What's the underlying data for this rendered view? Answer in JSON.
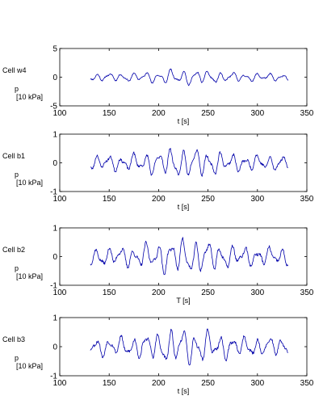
{
  "chart_data": [
    {
      "type": "line",
      "cell_label": "Cell w4",
      "ylabel_line1": "p",
      "ylabel_line2": "[10 kPa]",
      "xlabel": "t  [s]",
      "xlim": [
        100,
        350
      ],
      "ylim": [
        -5,
        5
      ],
      "xticks": [
        100,
        150,
        200,
        250,
        300,
        350
      ],
      "yticks": [
        -5,
        0,
        5
      ],
      "line_color": "#0000aa",
      "t_range": [
        131,
        331
      ],
      "amplitude": 1.3,
      "seed": 11
    },
    {
      "type": "line",
      "cell_label": "Cell b1",
      "ylabel_line1": "p",
      "ylabel_line2": "[10 kPa]",
      "xlabel": "t  [s]",
      "xlim": [
        100,
        350
      ],
      "ylim": [
        -1,
        1
      ],
      "xticks": [
        100,
        150,
        200,
        250,
        300,
        350
      ],
      "yticks": [
        -1,
        0,
        1
      ],
      "line_color": "#0000aa",
      "t_range": [
        131,
        331
      ],
      "amplitude": 0.52,
      "seed": 23
    },
    {
      "type": "line",
      "cell_label": "Cell b2",
      "ylabel_line1": "p",
      "ylabel_line2": "[10 kPa]",
      "xlabel": "T [s]",
      "xlim": [
        100,
        350
      ],
      "ylim": [
        -1,
        1
      ],
      "xticks": [
        100,
        150,
        200,
        250,
        300,
        350
      ],
      "yticks": [
        -1,
        0,
        1
      ],
      "line_color": "#0000aa",
      "t_range": [
        131,
        331
      ],
      "amplitude": 0.62,
      "seed": 37
    },
    {
      "type": "line",
      "cell_label": "Cell b3",
      "ylabel_line1": "p",
      "ylabel_line2": "[10 kPa]",
      "xlabel": "t  [s]",
      "xlim": [
        100,
        350
      ],
      "ylim": [
        -1,
        1
      ],
      "xticks": [
        100,
        150,
        200,
        250,
        300,
        350
      ],
      "yticks": [
        -1,
        0,
        1
      ],
      "line_color": "#0000aa",
      "t_range": [
        131,
        331
      ],
      "amplitude": 0.62,
      "seed": 53
    }
  ]
}
